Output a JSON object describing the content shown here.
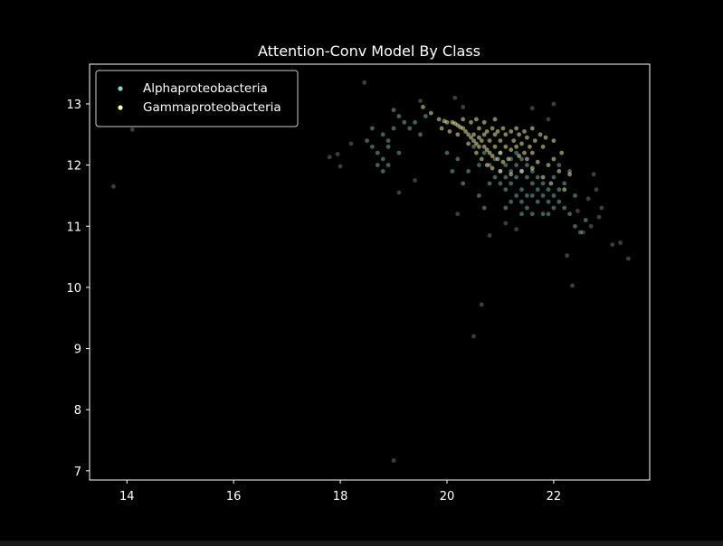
{
  "chart_data": {
    "type": "scatter",
    "title": "Attention-Conv Model By Class",
    "xlabel": "",
    "ylabel": "",
    "xlim": [
      13.3,
      23.8
    ],
    "ylim": [
      6.85,
      13.65
    ],
    "xticks": [
      "14",
      "16",
      "18",
      "20",
      "22"
    ],
    "yticks": [
      "7",
      "8",
      "9",
      "10",
      "11",
      "12",
      "13"
    ],
    "grid": false,
    "legend_position": "top-left",
    "background": "#000000",
    "series": [
      {
        "name": "Alphaproteobacteria",
        "color": "#8dd3c7",
        "points": [
          [
            21.3,
            12.0
          ],
          [
            21.4,
            11.9
          ],
          [
            21.2,
            12.1
          ],
          [
            21.5,
            11.8
          ],
          [
            21.1,
            12.0
          ],
          [
            21.6,
            11.7
          ],
          [
            21.0,
            12.2
          ],
          [
            21.7,
            11.6
          ],
          [
            21.3,
            11.8
          ],
          [
            21.4,
            12.1
          ],
          [
            21.2,
            11.9
          ],
          [
            21.8,
            11.5
          ],
          [
            21.5,
            12.0
          ],
          [
            21.1,
            11.8
          ],
          [
            21.9,
            11.4
          ],
          [
            21.6,
            11.9
          ],
          [
            21.0,
            11.9
          ],
          [
            21.3,
            12.2
          ],
          [
            21.7,
            11.8
          ],
          [
            20.9,
            12.1
          ],
          [
            22.0,
            11.3
          ],
          [
            21.4,
            11.6
          ],
          [
            21.2,
            11.7
          ],
          [
            21.5,
            11.5
          ],
          [
            21.8,
            11.7
          ],
          [
            22.1,
            11.4
          ],
          [
            21.6,
            11.5
          ],
          [
            20.8,
            12.0
          ],
          [
            21.1,
            11.6
          ],
          [
            21.9,
            11.6
          ],
          [
            22.2,
            11.3
          ],
          [
            21.0,
            11.7
          ],
          [
            20.7,
            12.2
          ],
          [
            21.4,
            11.4
          ],
          [
            22.0,
            11.5
          ],
          [
            21.3,
            11.5
          ],
          [
            21.7,
            11.4
          ],
          [
            20.9,
            11.8
          ],
          [
            21.5,
            11.3
          ],
          [
            21.8,
            11.2
          ],
          [
            22.1,
            11.6
          ],
          [
            21.2,
            11.4
          ],
          [
            20.6,
            12.0
          ],
          [
            21.6,
            11.2
          ],
          [
            21.1,
            11.3
          ],
          [
            22.3,
            11.2
          ],
          [
            20.8,
            11.7
          ],
          [
            21.9,
            11.2
          ],
          [
            21.4,
            11.2
          ],
          [
            22.0,
            11.8
          ],
          [
            18.8,
            12.5
          ],
          [
            18.9,
            12.3
          ],
          [
            18.7,
            12.2
          ],
          [
            19.0,
            12.6
          ],
          [
            18.8,
            12.1
          ],
          [
            19.1,
            12.8
          ],
          [
            18.9,
            12.4
          ],
          [
            18.6,
            12.3
          ],
          [
            19.2,
            12.7
          ],
          [
            18.7,
            12.0
          ],
          [
            19.0,
            12.9
          ],
          [
            19.3,
            12.6
          ],
          [
            18.5,
            12.4
          ],
          [
            19.4,
            12.7
          ],
          [
            18.8,
            11.9
          ],
          [
            19.5,
            12.5
          ],
          [
            18.6,
            12.6
          ],
          [
            19.1,
            12.2
          ],
          [
            19.6,
            12.8
          ],
          [
            18.9,
            12.0
          ],
          [
            20.2,
            12.1
          ],
          [
            20.4,
            11.9
          ],
          [
            20.5,
            12.3
          ],
          [
            20.3,
            11.7
          ],
          [
            20.6,
            11.5
          ],
          [
            20.1,
            11.9
          ],
          [
            20.7,
            11.3
          ],
          [
            20.0,
            12.2
          ],
          [
            22.4,
            11.0
          ],
          [
            22.5,
            10.9
          ],
          [
            22.2,
            11.7
          ],
          [
            22.3,
            11.9
          ],
          [
            22.4,
            11.5
          ],
          [
            22.6,
            11.1
          ],
          [
            22.1,
            12.0
          ]
        ]
      },
      {
        "name": "Gammaproteobacteria",
        "color": "#ffffb3",
        "points": [
          [
            20.0,
            12.7
          ],
          [
            20.1,
            12.7
          ],
          [
            20.2,
            12.65
          ],
          [
            20.3,
            12.6
          ],
          [
            20.15,
            12.68
          ],
          [
            19.95,
            12.72
          ],
          [
            20.25,
            12.62
          ],
          [
            20.35,
            12.55
          ],
          [
            20.4,
            12.5
          ],
          [
            20.45,
            12.45
          ],
          [
            20.5,
            12.4
          ],
          [
            20.55,
            12.35
          ],
          [
            20.6,
            12.3
          ],
          [
            20.5,
            12.5
          ],
          [
            20.6,
            12.45
          ],
          [
            20.65,
            12.4
          ],
          [
            20.7,
            12.3
          ],
          [
            20.75,
            12.25
          ],
          [
            20.8,
            12.2
          ],
          [
            20.7,
            12.5
          ],
          [
            20.8,
            12.4
          ],
          [
            20.9,
            12.3
          ],
          [
            20.85,
            12.15
          ],
          [
            20.95,
            12.1
          ],
          [
            21.0,
            12.2
          ],
          [
            20.9,
            12.5
          ],
          [
            21.0,
            12.4
          ],
          [
            21.1,
            12.3
          ],
          [
            21.05,
            12.05
          ],
          [
            21.15,
            12.1
          ],
          [
            21.2,
            12.25
          ],
          [
            21.1,
            12.5
          ],
          [
            21.25,
            12.4
          ],
          [
            21.3,
            12.3
          ],
          [
            21.35,
            12.15
          ],
          [
            21.4,
            12.35
          ],
          [
            21.45,
            12.2
          ],
          [
            21.5,
            12.1
          ],
          [
            21.55,
            12.3
          ],
          [
            21.6,
            12.2
          ],
          [
            20.6,
            12.6
          ],
          [
            20.75,
            12.55
          ],
          [
            20.85,
            12.6
          ],
          [
            20.95,
            12.55
          ],
          [
            21.05,
            12.6
          ],
          [
            21.2,
            12.55
          ],
          [
            21.35,
            12.5
          ],
          [
            21.5,
            12.45
          ],
          [
            21.65,
            12.4
          ],
          [
            21.7,
            12.05
          ],
          [
            20.4,
            12.35
          ],
          [
            20.55,
            12.2
          ],
          [
            20.65,
            12.1
          ],
          [
            20.75,
            12.0
          ],
          [
            20.85,
            11.95
          ],
          [
            21.0,
            11.9
          ],
          [
            20.45,
            12.7
          ],
          [
            20.55,
            12.75
          ],
          [
            20.7,
            12.7
          ],
          [
            20.9,
            12.75
          ],
          [
            22.0,
            12.1
          ],
          [
            21.8,
            12.3
          ],
          [
            21.9,
            12.0
          ],
          [
            22.1,
            11.9
          ],
          [
            21.75,
            12.5
          ],
          [
            19.9,
            12.6
          ],
          [
            20.05,
            12.55
          ],
          [
            19.85,
            12.75
          ],
          [
            20.3,
            12.75
          ],
          [
            20.2,
            12.5
          ],
          [
            21.3,
            12.6
          ],
          [
            21.45,
            12.55
          ],
          [
            21.6,
            12.6
          ],
          [
            21.85,
            12.45
          ],
          [
            22.0,
            12.4
          ],
          [
            21.2,
            11.85
          ],
          [
            21.4,
            11.9
          ],
          [
            21.6,
            11.95
          ],
          [
            21.8,
            11.8
          ],
          [
            21.95,
            11.7
          ],
          [
            19.55,
            12.95
          ],
          [
            19.7,
            12.85
          ],
          [
            22.15,
            12.2
          ],
          [
            22.3,
            11.85
          ],
          [
            22.2,
            11.6
          ]
        ]
      }
    ],
    "outliers": [
      [
        13.75,
        11.65
      ],
      [
        14.1,
        12.58
      ],
      [
        18.45,
        13.35
      ],
      [
        19.0,
        7.17
      ],
      [
        20.5,
        9.2
      ],
      [
        20.65,
        9.72
      ],
      [
        20.8,
        10.85
      ],
      [
        20.2,
        11.2
      ],
      [
        22.35,
        10.03
      ],
      [
        22.25,
        10.52
      ],
      [
        23.1,
        10.7
      ],
      [
        23.25,
        10.73
      ],
      [
        23.4,
        10.47
      ],
      [
        22.7,
        11.0
      ],
      [
        22.55,
        10.9
      ],
      [
        22.9,
        11.3
      ],
      [
        17.8,
        12.13
      ],
      [
        18.0,
        11.98
      ],
      [
        18.2,
        12.35
      ],
      [
        17.95,
        12.18
      ],
      [
        22.0,
        13.0
      ],
      [
        21.6,
        12.93
      ],
      [
        20.15,
        13.1
      ],
      [
        19.5,
        13.05
      ],
      [
        22.8,
        11.6
      ],
      [
        22.65,
        11.45
      ],
      [
        22.45,
        11.25
      ],
      [
        19.1,
        11.55
      ],
      [
        19.4,
        11.75
      ],
      [
        22.75,
        11.85
      ],
      [
        22.85,
        11.15
      ],
      [
        21.3,
        10.95
      ],
      [
        21.1,
        11.05
      ],
      [
        20.3,
        12.95
      ],
      [
        21.9,
        12.75
      ]
    ]
  }
}
